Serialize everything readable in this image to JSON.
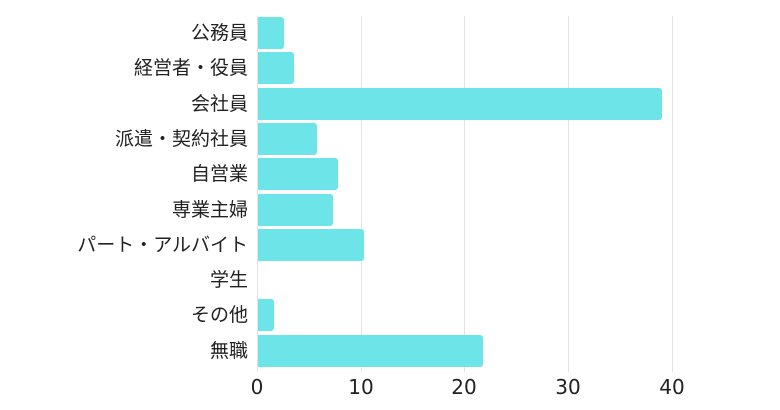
{
  "chart_data": {
    "type": "bar",
    "orientation": "horizontal",
    "title": "",
    "xlabel": "",
    "ylabel": "",
    "categories": [
      "公務員",
      "経営者・役員",
      "会社員",
      "派遣・契約社員",
      "自営業",
      "専業主婦",
      "パート・アルバイト",
      "学生",
      "その他",
      "無職"
    ],
    "values": [
      2.5,
      3.5,
      39,
      5.7,
      7.7,
      7.2,
      10.2,
      0,
      1.5,
      21.7
    ],
    "xlim": [
      0,
      40
    ],
    "xticks": [
      "0",
      "10",
      "20",
      "30",
      "40"
    ],
    "grid": true,
    "legend": null,
    "color": "#6ce4e8"
  }
}
